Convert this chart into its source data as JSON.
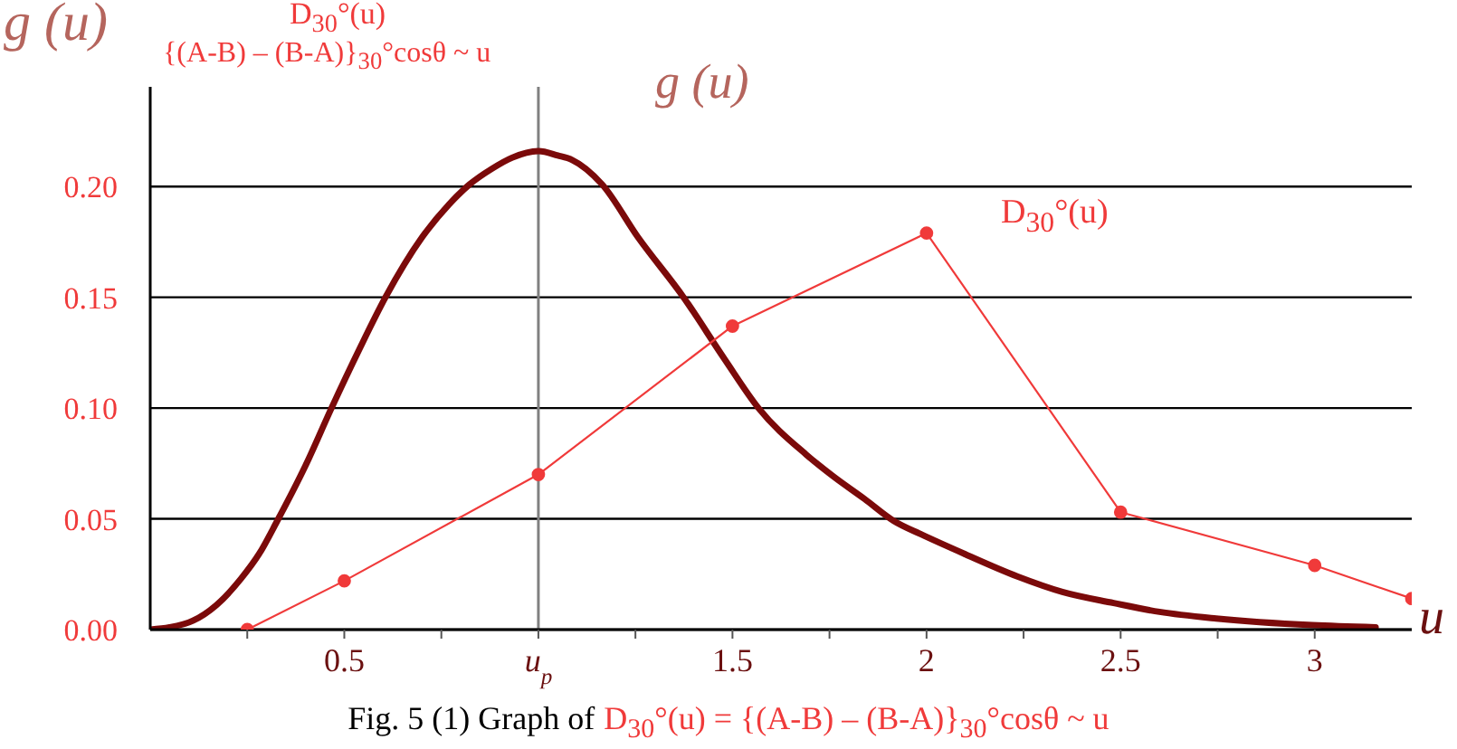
{
  "chart_data": {
    "type": "line",
    "ylabel": "g (u)",
    "xlabel": "u",
    "annotations": [
      "D$_{30}$°(u)",
      "{(A-B) – (B-A)}$_{30}$°cosθ ~ u",
      "Fig. 5 (1) Graph of",
      "D$_{30}$°(u) = {(A-B) – (B-A)}$_{30}$°cosθ ~ u"
    ],
    "series": [
      {
        "name": "g (u)",
        "color": "#7b0a0a",
        "marker": "none",
        "x": [
          0,
          0.05,
          0.11,
          0.17,
          0.234,
          0.28,
          0.327,
          0.4,
          0.467,
          0.54,
          0.606,
          0.7,
          0.77,
          0.823,
          0.88,
          0.932,
          1,
          1.05,
          1.087,
          1.164,
          1.257,
          1.374,
          1.48,
          1.567,
          1.69,
          1.761,
          1.84,
          1.916,
          1.986,
          2.1,
          2.234,
          2.35,
          2.482,
          2.6,
          2.746,
          2.994,
          3.157
        ],
        "values": [
          0,
          0.001,
          0.004,
          0.011,
          0.023,
          0.034,
          0.049,
          0.074,
          0.1,
          0.127,
          0.15,
          0.177,
          0.192,
          0.201,
          0.208,
          0.213,
          0.216,
          0.214,
          0.212,
          0.201,
          0.177,
          0.15,
          0.122,
          0.1,
          0.079,
          0.069,
          0.059,
          0.049,
          0.043,
          0.034,
          0.024,
          0.017,
          0.012,
          0.008,
          0.005,
          0.002,
          0.001
        ]
      },
      {
        "name": "D$_{30}$°(u)",
        "color": "#f03a3a",
        "marker": "circle",
        "x": [
          0.25,
          0.5,
          1,
          1.5,
          2,
          2.5,
          3,
          3.25
        ],
        "values": [
          0,
          0.022,
          0.07,
          0.137,
          0.179,
          0.053,
          0.029,
          0.014
        ]
      }
    ],
    "xlim": [
      0,
      3.25
    ],
    "xticks": [
      {
        "value": 0.25,
        "label": null
      },
      0.5,
      {
        "value": 0.75,
        "label": null
      },
      {
        "value": 1,
        "label": "u$_{p}$"
      },
      {
        "value": 1.25,
        "label": null
      },
      1.5,
      {
        "value": 1.75,
        "label": null
      },
      2,
      {
        "value": 2.25,
        "label": null
      },
      2.5,
      {
        "value": 2.75,
        "label": null
      },
      3
    ],
    "ylim": [
      0,
      0.245
    ],
    "yticks": [
      {
        "value": 0,
        "label": "0.00"
      },
      0.05,
      {
        "value": 0.1,
        "label": "0.10"
      },
      0.15,
      {
        "value": 0.2,
        "label": "0.20"
      }
    ],
    "grid": "y",
    "ref_lines": [
      {
        "axis": "x",
        "value": 1,
        "color": "#808080"
      }
    ]
  }
}
